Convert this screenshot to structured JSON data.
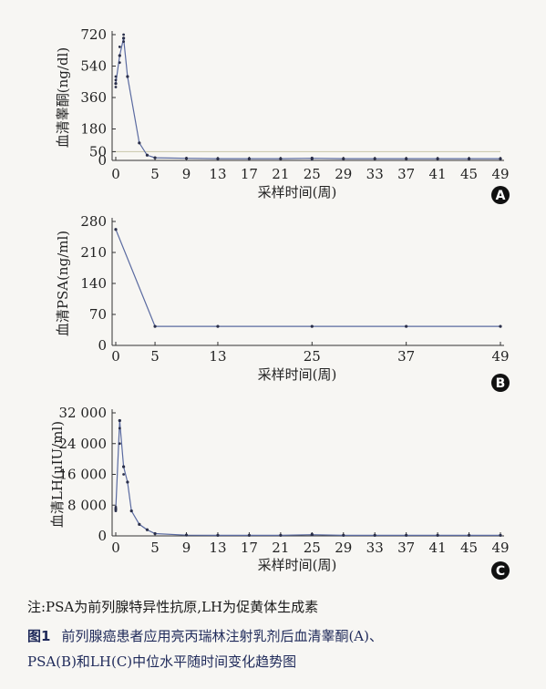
{
  "chart_data": [
    {
      "type": "line",
      "panel_label": "A",
      "ylabel": "血清睾酮(ng/dl)",
      "xlabel": "采样时间(周)",
      "x_ticks": [
        0,
        5,
        9,
        13,
        17,
        21,
        25,
        29,
        33,
        37,
        41,
        45,
        49
      ],
      "y_ticks": [
        0,
        50,
        180,
        360,
        540,
        720
      ],
      "y_tick_labels": [
        "0",
        "50",
        "180",
        "360",
        "540",
        "720"
      ],
      "xlim": [
        0,
        49
      ],
      "ylim": [
        0,
        720
      ],
      "reference_line": 50,
      "series": [
        {
          "x": [
            0,
            0.5,
            1,
            1.5,
            3,
            4,
            5,
            9,
            13,
            17,
            21,
            25,
            29,
            33,
            37,
            41,
            45,
            49
          ],
          "y": [
            440,
            600,
            700,
            480,
            100,
            30,
            15,
            12,
            10,
            10,
            10,
            12,
            10,
            10,
            10,
            10,
            10,
            10
          ]
        }
      ],
      "points_scatter": [
        {
          "x": 0,
          "y": [
            420,
            440,
            460,
            480
          ]
        },
        {
          "x": 0.5,
          "y": [
            560,
            600,
            650
          ]
        },
        {
          "x": 1,
          "y": [
            680,
            700,
            720
          ]
        },
        {
          "x": 25,
          "y": [
            14,
            10,
            6
          ]
        }
      ]
    },
    {
      "type": "line",
      "panel_label": "B",
      "ylabel": "血清PSA(ng/ml)",
      "xlabel": "采样时间(周)",
      "x_ticks": [
        0,
        5,
        13,
        25,
        37,
        49
      ],
      "y_ticks": [
        0,
        70,
        140,
        210,
        280
      ],
      "y_tick_labels": [
        "0",
        "70",
        "140",
        "210",
        "280"
      ],
      "xlim": [
        0,
        49
      ],
      "ylim": [
        0,
        280
      ],
      "series": [
        {
          "x": [
            0,
            5,
            13,
            25,
            37,
            49
          ],
          "y": [
            262,
            43,
            43,
            43,
            43,
            43
          ]
        }
      ]
    },
    {
      "type": "line",
      "panel_label": "C",
      "ylabel": "血清LH(μIU/ml)",
      "xlabel": "采样时间(周)",
      "x_ticks": [
        0,
        5,
        9,
        13,
        17,
        21,
        25,
        29,
        33,
        37,
        41,
        45,
        49
      ],
      "y_ticks": [
        0,
        8000,
        16000,
        24000,
        32000
      ],
      "y_tick_labels": [
        "0",
        "8 000",
        "16 000",
        "24 000",
        "32 000"
      ],
      "xlim": [
        0,
        49
      ],
      "ylim": [
        0,
        32000
      ],
      "series": [
        {
          "x": [
            0,
            0.5,
            1,
            1.5,
            2,
            3,
            4,
            5,
            9,
            13,
            17,
            21,
            25,
            29,
            33,
            37,
            41,
            45,
            49
          ],
          "y": [
            7000,
            30000,
            18000,
            14000,
            6500,
            3000,
            1600,
            600,
            200,
            150,
            150,
            150,
            300,
            150,
            150,
            150,
            150,
            150,
            150
          ]
        }
      ],
      "points_scatter": [
        {
          "x": 0,
          "y": [
            6500,
            7500
          ]
        },
        {
          "x": 0.5,
          "y": [
            28000,
            30000,
            24000
          ]
        },
        {
          "x": 1,
          "y": [
            18000,
            16000
          ]
        },
        {
          "x": 25,
          "y": [
            500,
            200
          ]
        }
      ]
    }
  ],
  "note": "注:PSA为前列腺特异性抗原,LH为促黄体生成素",
  "caption": {
    "label": "图1",
    "line1": "前列腺癌患者应用亮丙瑞林注射乳剂后血清睾酮(A)、",
    "line2": "PSA(B)和LH(C)中位水平随时间变化趋势图"
  },
  "colors": {
    "line": "#5a6aa0",
    "axis": "#333333",
    "reference": "#c9c6a8",
    "badge": "#111111",
    "caption": "#1f2a5a"
  }
}
